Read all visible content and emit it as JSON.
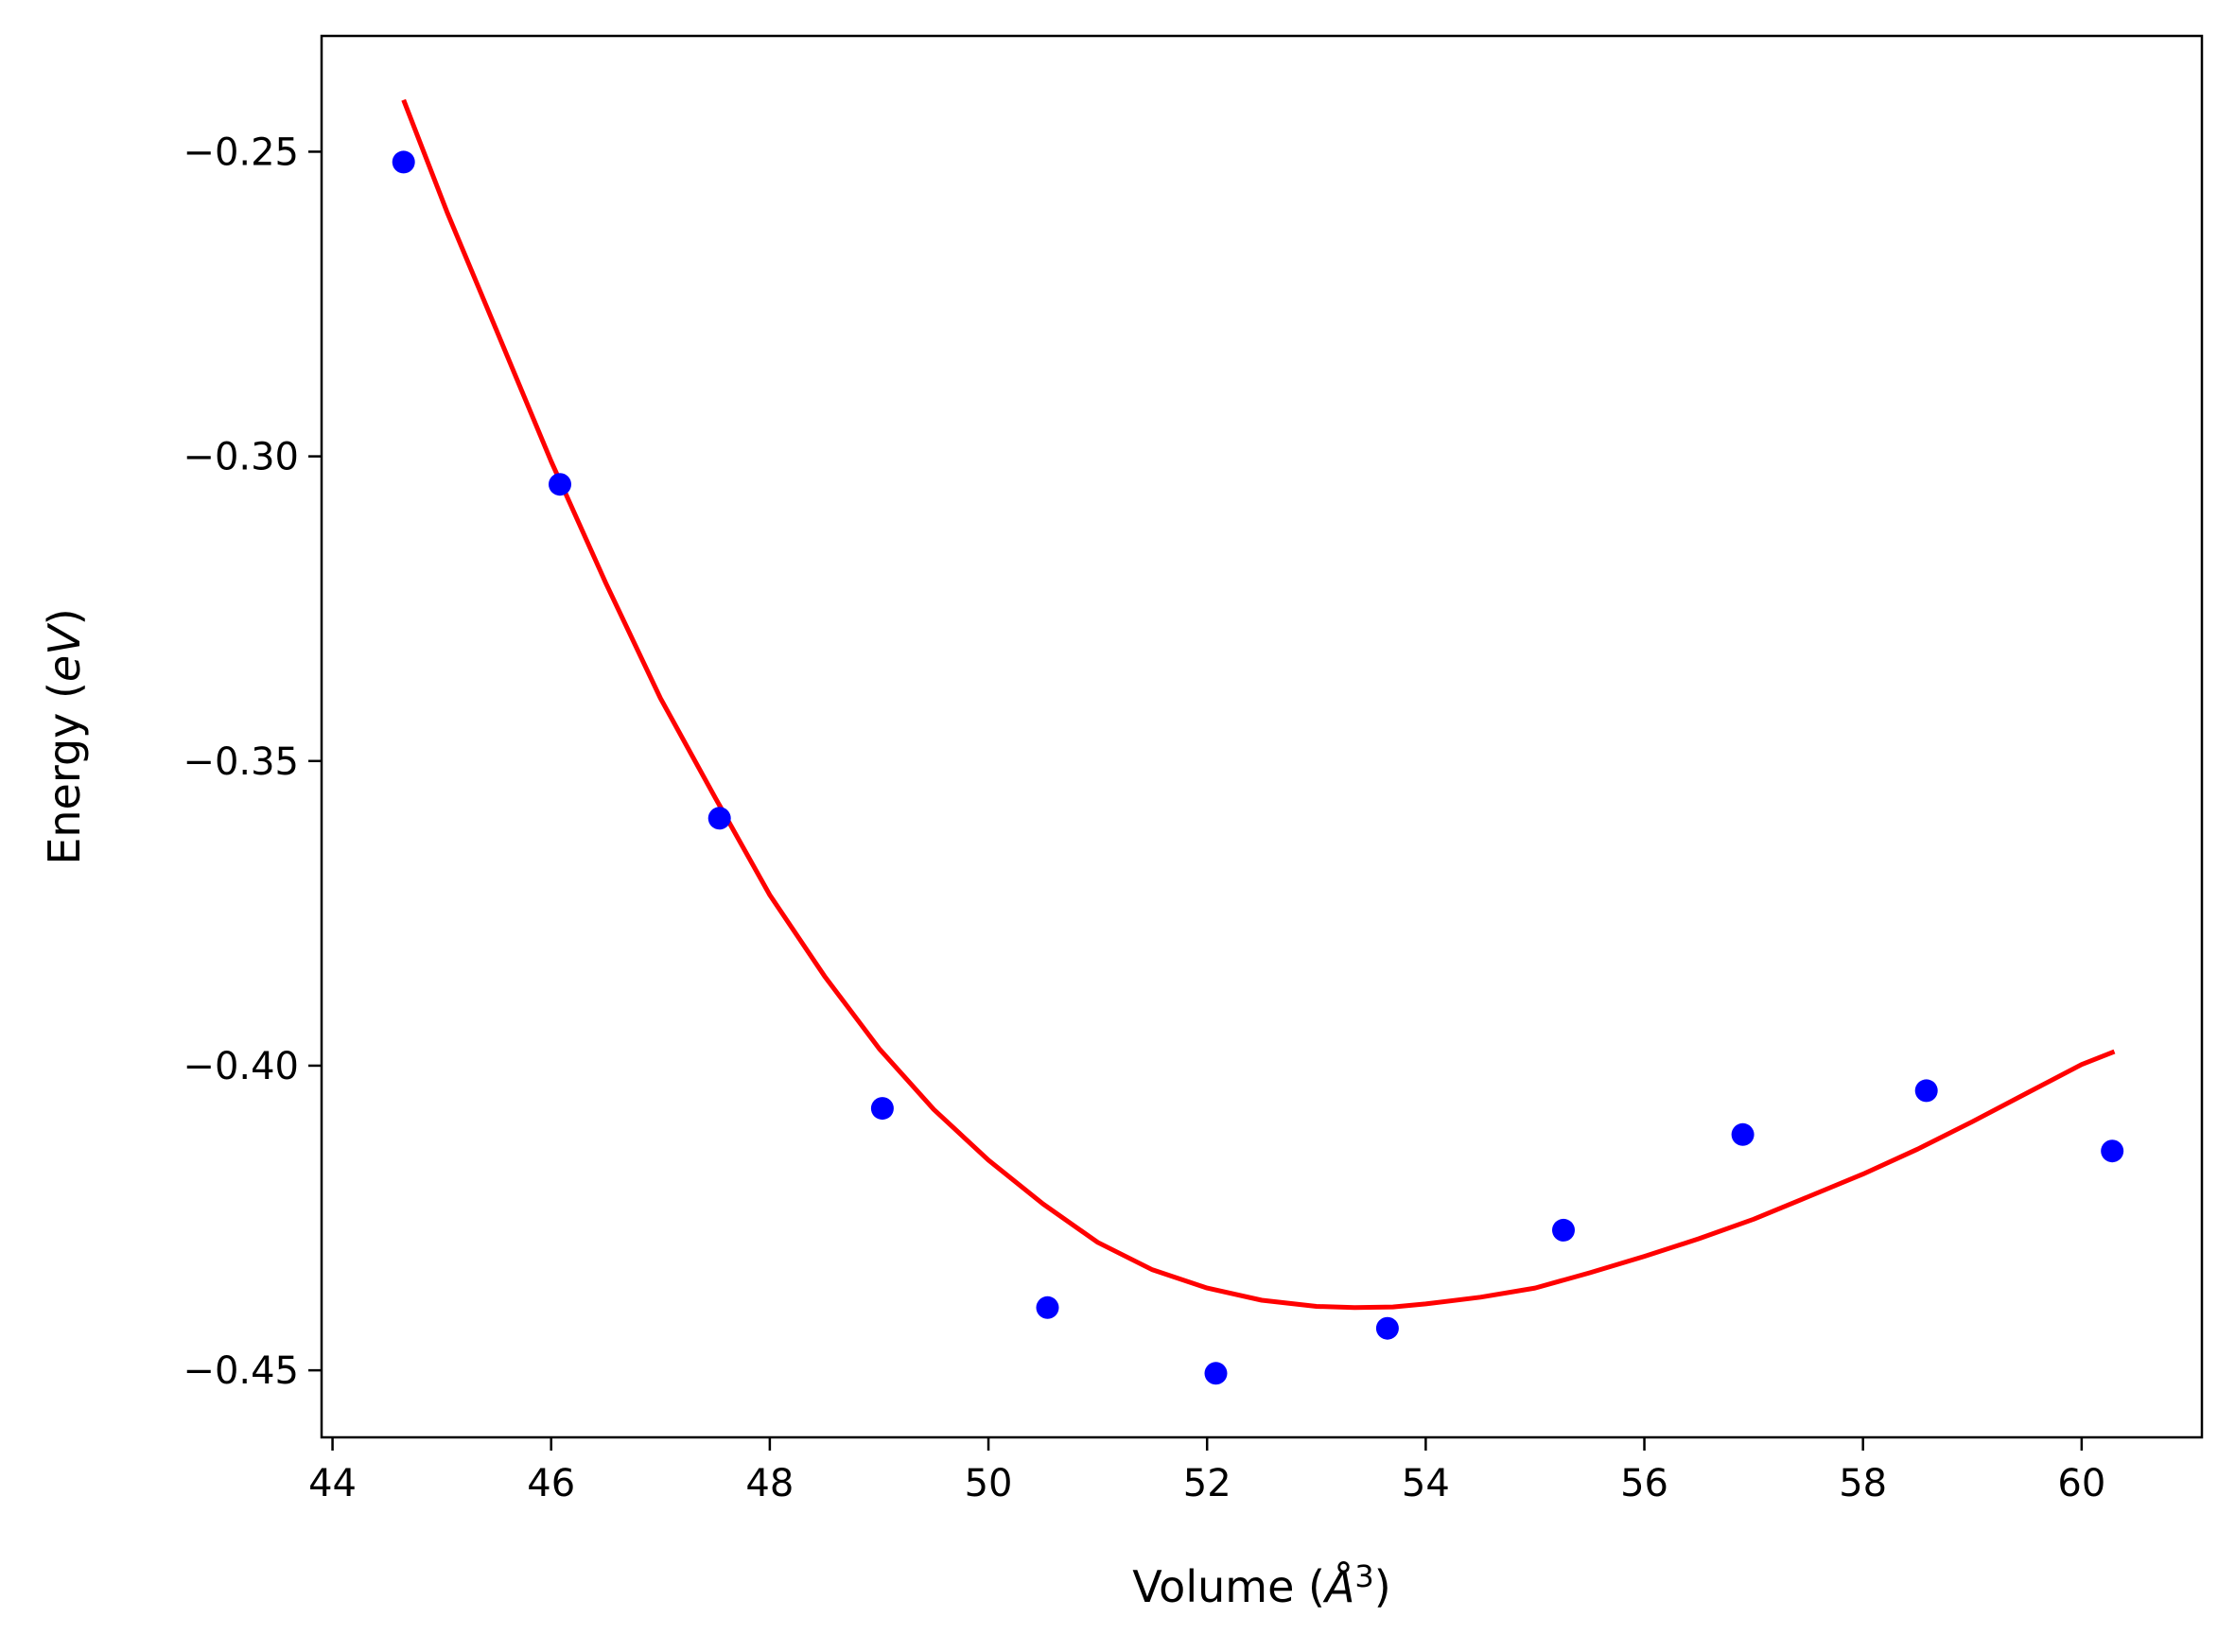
{
  "chart_data": {
    "type": "scatter",
    "xlabel": "Volume (Å³)",
    "xlabel_main": "Volume (",
    "xlabel_unit": "Å",
    "xlabel_sup": "3",
    "xlabel_close": ")",
    "ylabel": "Energy (eV)",
    "ylabel_main": "Energy (",
    "ylabel_unit": "eV",
    "ylabel_close": ")",
    "xlim": [
      43.9,
      61.1
    ],
    "ylim": [
      -0.461,
      -0.231
    ],
    "x_ticks": [
      44,
      46,
      48,
      50,
      52,
      54,
      56,
      58,
      60
    ],
    "x_tick_labels": [
      "44",
      "46",
      "48",
      "50",
      "52",
      "54",
      "56",
      "58",
      "60"
    ],
    "y_ticks": [
      -0.25,
      -0.3,
      -0.35,
      -0.4,
      -0.45
    ],
    "y_tick_labels": [
      "−0.25",
      "−0.30",
      "−0.35",
      "−0.40",
      "−0.45"
    ],
    "grid": false,
    "series": [
      {
        "kind": "points",
        "color": "#0000ff",
        "x": [
          44.65,
          46.08,
          47.54,
          49.03,
          50.54,
          52.08,
          53.65,
          55.26,
          56.9,
          58.58,
          60.28
        ],
        "y": [
          -0.2517,
          -0.3046,
          -0.3594,
          -0.407,
          -0.4397,
          -0.4505,
          -0.4431,
          -0.427,
          -0.4113,
          -0.4041,
          -0.414
        ]
      },
      {
        "kind": "line",
        "color": "#ff0000",
        "x": [
          44.65,
          45.05,
          45.5,
          46.0,
          46.5,
          47.0,
          47.5,
          48.0,
          48.5,
          49.0,
          49.5,
          50.0,
          50.5,
          51.0,
          51.5,
          52.0,
          52.5,
          53.0,
          53.35,
          53.7,
          54.0,
          54.5,
          55.0,
          55.5,
          56.0,
          56.5,
          57.0,
          57.5,
          58.0,
          58.5,
          59.0,
          59.5,
          60.0,
          60.3
        ],
        "y": [
          -0.2415,
          -0.26,
          -0.2793,
          -0.3008,
          -0.3208,
          -0.3397,
          -0.356,
          -0.372,
          -0.3853,
          -0.3972,
          -0.4072,
          -0.4155,
          -0.4227,
          -0.429,
          -0.4335,
          -0.4365,
          -0.4385,
          -0.4395,
          -0.4397,
          -0.4396,
          -0.4391,
          -0.438,
          -0.4365,
          -0.434,
          -0.4313,
          -0.4284,
          -0.4252,
          -0.4215,
          -0.4178,
          -0.4137,
          -0.4092,
          -0.4045,
          -0.3998,
          -0.3977
        ]
      }
    ]
  }
}
